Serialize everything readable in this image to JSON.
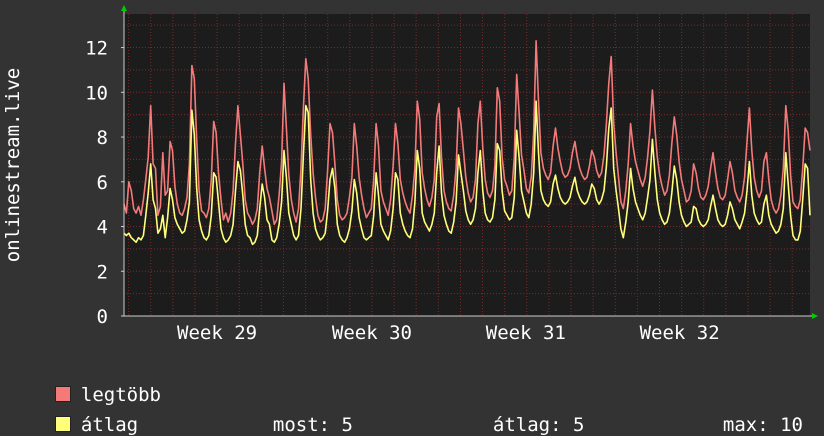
{
  "chart_data": {
    "type": "line",
    "ylabel": "onlinestream.live",
    "ylim": [
      0,
      13.5
    ],
    "yticks": [
      0,
      2,
      4,
      6,
      8,
      10,
      12
    ],
    "xlim": [
      0,
      700
    ],
    "xticks": [
      {
        "label": "Week 29",
        "x": 95
      },
      {
        "label": "Week 30",
        "x": 253
      },
      {
        "label": "Week 31",
        "x": 410
      },
      {
        "label": "Week 32",
        "x": 567
      }
    ],
    "grid": true,
    "legend_placement": "bottom-left",
    "colors": {
      "background": "#333333",
      "plot_bg": "#1c1c1c",
      "grid": "#7a2a2a",
      "axis": "#cccccc",
      "text": "#ffffff",
      "arrow": "#00cc00"
    },
    "series": [
      {
        "name": "legtöbb",
        "color": "#f47a7a",
        "values": [
          5,
          4.6,
          6,
          5.6,
          4.8,
          4.6,
          4.9,
          4.5,
          5.2,
          6.1,
          7.1,
          9.4,
          6.8,
          6.6,
          4.5,
          4.9,
          7.3,
          5.4,
          5.6,
          7.8,
          7.4,
          5.8,
          5,
          4.6,
          4.5,
          4.8,
          5.3,
          6.8,
          11.2,
          10.6,
          7.9,
          5.6,
          4.7,
          4.6,
          4.4,
          4.8,
          6.1,
          8.7,
          8.2,
          6.4,
          5.2,
          4.3,
          4.6,
          4.2,
          4.6,
          5.6,
          7.7,
          9.4,
          8.1,
          6.8,
          5.2,
          4.6,
          4.4,
          4.1,
          4.3,
          4.8,
          6.4,
          7.6,
          6.6,
          5.7,
          5.3,
          4.7,
          4.1,
          4.3,
          5.4,
          6.9,
          10.4,
          8.4,
          6.3,
          5.2,
          4.6,
          4.2,
          4.8,
          6.6,
          9.3,
          11.5,
          10.6,
          8.1,
          6.4,
          5.3,
          4.5,
          4.2,
          4.3,
          4.8,
          6.5,
          8.6,
          8.2,
          6.8,
          5.2,
          4.5,
          4.3,
          4.4,
          4.6,
          5.3,
          6.2,
          8.6,
          7.6,
          6.2,
          5.4,
          4.8,
          4.4,
          4.6,
          4.8,
          6.1,
          8.6,
          7.6,
          5.6,
          5.1,
          4.8,
          4.5,
          5.2,
          6.7,
          8.6,
          7.7,
          6.1,
          5.5,
          5.1,
          4.8,
          4.6,
          5.4,
          6.6,
          9.6,
          8.8,
          6.4,
          5.7,
          5.2,
          4.9,
          5.3,
          6.1,
          8.9,
          9.5,
          7.1,
          5.6,
          5.1,
          4.8,
          4.7,
          5.4,
          6.6,
          9.3,
          8.6,
          7.4,
          6.2,
          5.5,
          5.1,
          5.3,
          6.1,
          8.6,
          9.6,
          7.5,
          6.1,
          5.5,
          5.3,
          5.6,
          6.7,
          10.2,
          9.6,
          7.1,
          6.1,
          5.8,
          5.4,
          5.6,
          7.1,
          10.8,
          9.1,
          7.2,
          6.5,
          5.7,
          5.5,
          6.2,
          8.2,
          12.3,
          9.6,
          7.3,
          6.6,
          6.3,
          6.1,
          6.4,
          7.6,
          8.4,
          7.5,
          6.9,
          6.4,
          6.2,
          6.3,
          6.6,
          7.3,
          7.8,
          7.1,
          6.6,
          6.3,
          6.1,
          6.2,
          6.7,
          7.4,
          7.1,
          6.5,
          6.2,
          6.4,
          7.2,
          8.6,
          10.4,
          11.6,
          8.6,
          7.3,
          6.2,
          5.1,
          4.8,
          5.6,
          6.8,
          8.6,
          7.6,
          6.9,
          6.5,
          6.1,
          5.8,
          6.2,
          7.1,
          8.3,
          10.1,
          8.4,
          7.1,
          6.3,
          5.8,
          5.4,
          5.6,
          6.3,
          7.7,
          8.9,
          8.1,
          6.9,
          6.1,
          5.6,
          5.1,
          5.2,
          5.6,
          6.8,
          6.4,
          5.7,
          5.3,
          5.2,
          5.4,
          5.8,
          6.6,
          7.3,
          6.4,
          5.7,
          5.3,
          5.2,
          5.4,
          6.1,
          6.9,
          6.4,
          5.6,
          5.3,
          5.1,
          5.4,
          6.2,
          7.8,
          9.3,
          7.4,
          6.2,
          5.6,
          5.3,
          5.6,
          6.9,
          7.3,
          6.1,
          5.2,
          4.8,
          4.6,
          4.8,
          5.4,
          6.6,
          9.4,
          8.3,
          6.3,
          5.1,
          4.9,
          4.8,
          5.2,
          6.6,
          8.4,
          8.2,
          7.4
        ]
      },
      {
        "name": "átlag",
        "color": "#ffff7a",
        "values": [
          3.7,
          3.6,
          3.7,
          3.5,
          3.4,
          3.3,
          3.5,
          3.4,
          3.6,
          4.5,
          5.5,
          6.8,
          5.2,
          4.8,
          3.7,
          3.9,
          4.5,
          3.5,
          4.4,
          5.7,
          5.2,
          4.4,
          4.1,
          3.9,
          3.7,
          3.8,
          4.3,
          5.1,
          9.2,
          8.1,
          5.7,
          4.3,
          3.8,
          3.5,
          3.4,
          3.6,
          4.5,
          6.4,
          6.2,
          5.1,
          3.9,
          3.5,
          3.3,
          3.4,
          3.6,
          4.1,
          5.6,
          6.9,
          6.5,
          5.4,
          4.1,
          3.6,
          3.5,
          3.2,
          3.3,
          3.6,
          4.8,
          5.9,
          5.3,
          4.3,
          4.1,
          3.4,
          3.3,
          3.5,
          4.1,
          5.1,
          7.4,
          6.2,
          4.6,
          4.1,
          3.6,
          3.4,
          3.6,
          4.8,
          7.2,
          9.4,
          9.1,
          6.1,
          4.6,
          3.9,
          3.6,
          3.4,
          3.5,
          3.7,
          4.7,
          6.1,
          6.6,
          5.7,
          4.1,
          3.6,
          3.4,
          3.3,
          3.5,
          3.9,
          4.7,
          6.1,
          5.5,
          4.4,
          3.9,
          3.5,
          3.4,
          3.5,
          3.6,
          4.5,
          6.4,
          5.4,
          4.1,
          3.8,
          3.6,
          3.4,
          3.8,
          4.8,
          6.4,
          6.1,
          4.6,
          4.1,
          3.8,
          3.6,
          3.5,
          3.9,
          5.1,
          7.4,
          6.6,
          4.6,
          4.2,
          4,
          3.8,
          4.1,
          4.6,
          6.4,
          7.6,
          5.5,
          4.5,
          4.1,
          3.8,
          3.7,
          4.2,
          5.1,
          7.2,
          6.4,
          5.6,
          4.7,
          4.3,
          4.1,
          4.3,
          4.8,
          6.4,
          7.4,
          5.6,
          4.6,
          4.3,
          4.2,
          4.4,
          5.2,
          7.7,
          7.4,
          5.6,
          4.7,
          4.5,
          4.3,
          4.4,
          5.3,
          8.3,
          7.1,
          5.6,
          5.1,
          4.6,
          4.4,
          5,
          6.4,
          9.6,
          7.3,
          5.6,
          5.2,
          5,
          4.9,
          5.1,
          5.9,
          6.3,
          5.7,
          5.3,
          5.1,
          5,
          5.1,
          5.3,
          5.8,
          6.2,
          5.6,
          5.3,
          5.1,
          5,
          5.1,
          5.4,
          5.9,
          5.7,
          5.2,
          5,
          5.2,
          5.6,
          6.7,
          8.4,
          9.3,
          6.6,
          5.6,
          4.8,
          3.9,
          3.5,
          4.2,
          5.1,
          6.6,
          5.7,
          5.1,
          4.8,
          4.5,
          4.3,
          4.6,
          5.3,
          6.1,
          7.9,
          6.4,
          5.2,
          4.6,
          4.3,
          4.1,
          4.2,
          4.6,
          5.5,
          6.7,
          6.1,
          5.1,
          4.5,
          4.2,
          4,
          4.1,
          4.2,
          4.9,
          4.8,
          4.3,
          4.1,
          4,
          4.1,
          4.3,
          4.9,
          5.4,
          4.8,
          4.3,
          4.1,
          4,
          4.1,
          4.5,
          5.1,
          4.8,
          4.3,
          4.1,
          3.9,
          4.2,
          4.6,
          5.6,
          6.9,
          5.4,
          4.6,
          4.3,
          4.1,
          4.2,
          5,
          5.4,
          4.5,
          4.1,
          3.9,
          3.7,
          3.8,
          4.1,
          4.8,
          7.3,
          5.9,
          4.5,
          3.6,
          3.4,
          3.4,
          3.8,
          5.2,
          6.8,
          6.6,
          4.5
        ]
      }
    ]
  },
  "legend": {
    "items": [
      {
        "label": "legtöbb",
        "color": "#f47a7a"
      },
      {
        "label": "átlag",
        "color": "#ffff7a"
      }
    ]
  },
  "stats": {
    "now_label": "most:",
    "now_value": "5",
    "avg_label": "átlag:",
    "avg_value": "5",
    "max_label": "max:",
    "max_value": "10"
  }
}
